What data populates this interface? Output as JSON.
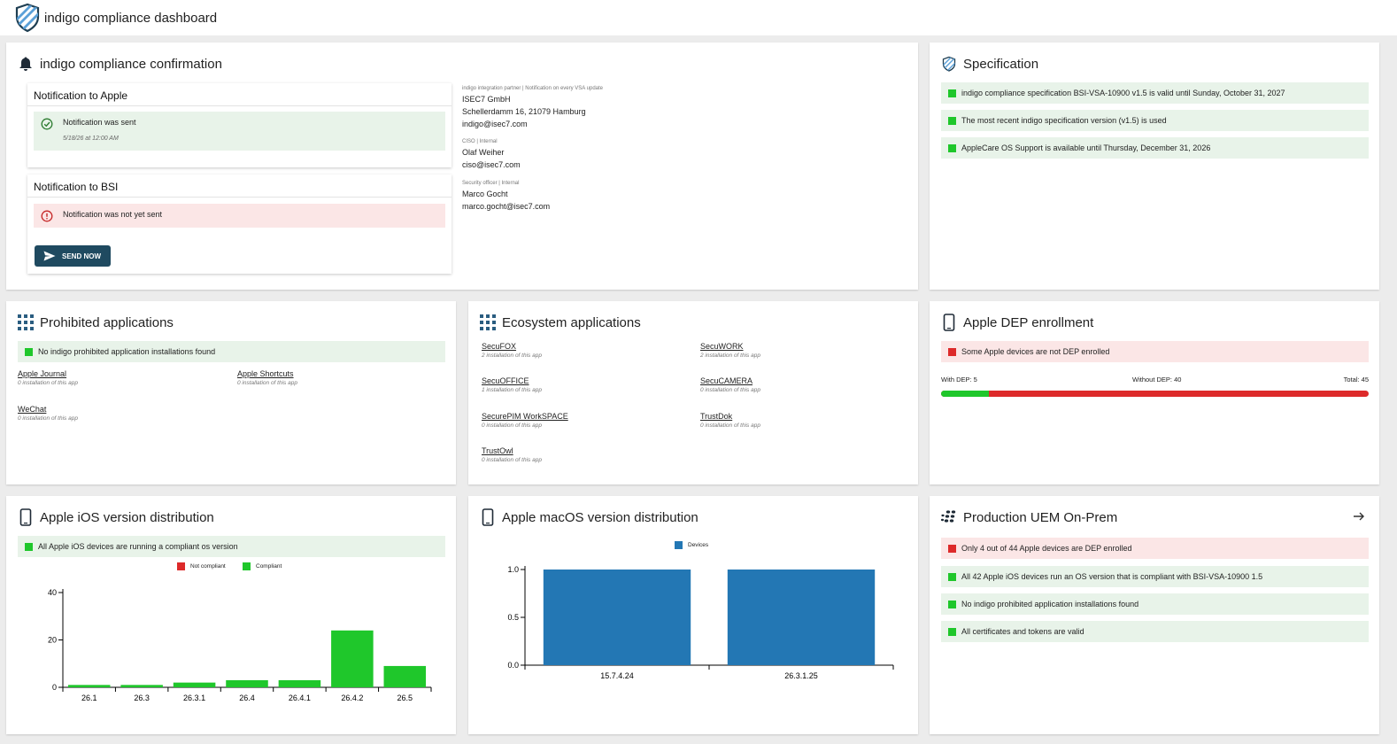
{
  "app": {
    "title": "indigo compliance dashboard"
  },
  "colors": {
    "compliant": "#1fc72b",
    "not_compliant": "#dd2a2a",
    "devices": "#2377b4",
    "button": "#1f4a60"
  },
  "confirmation": {
    "title": "indigo compliance confirmation",
    "apple": {
      "title": "Notification to Apple",
      "status": "Notification was sent",
      "date": "5/18/26 at 12:00 AM"
    },
    "bsi": {
      "title": "Notification to BSI",
      "status": "Notification was not yet sent",
      "button": "SEND NOW"
    },
    "contacts": [
      {
        "role": "indigo integration partner | Notification on every VSA update",
        "lines": [
          "ISEC7 GmbH",
          "Schellerdamm 16, 21079 Hamburg",
          "indigo@isec7.com"
        ]
      },
      {
        "role": "CISO | Internal",
        "lines": [
          "Olaf Weiher",
          "ciso@isec7.com"
        ]
      },
      {
        "role": "Security officer | Internal",
        "lines": [
          "Marco Gocht",
          "marco.gocht@isec7.com"
        ]
      }
    ]
  },
  "specification": {
    "title": "Specification",
    "items": [
      "indigo compliance specification BSI-VSA-10900 v1.5 is valid until Sunday, October 31, 2027",
      "The most recent indigo specification version (v1.5) is used",
      "AppleCare OS Support is available until Thursday, December 31, 2026"
    ]
  },
  "prohibited": {
    "title": "Prohibited applications",
    "status": "No indigo prohibited application installations found",
    "apps": [
      {
        "name": "Apple Journal",
        "count": "0 installation of this app"
      },
      {
        "name": "Apple Shortcuts",
        "count": "0 installation of this app"
      },
      {
        "name": "WeChat",
        "count": "0 installation of this app"
      }
    ]
  },
  "ecosystem": {
    "title": "Ecosystem applications",
    "apps": [
      {
        "name": "SecuFOX",
        "count": "2 installation of this app"
      },
      {
        "name": "SecuWORK",
        "count": "2 installation of this app"
      },
      {
        "name": "SecuOFFICE",
        "count": "1 installation of this app"
      },
      {
        "name": "SecuCAMERA",
        "count": "0 installation of this app"
      },
      {
        "name": "SecurePIM WorkSPACE",
        "count": "0 installation of this app"
      },
      {
        "name": "TrustDok",
        "count": "0 installation of this app"
      },
      {
        "name": "TrustOwl",
        "count": "0 installation of this app"
      }
    ]
  },
  "dep": {
    "title": "Apple DEP enrollment",
    "status": "Some Apple devices are not DEP enrolled",
    "with_label": "With DEP: 5",
    "without_label": "Without DEP: 40",
    "total_label": "Total: 45",
    "with": 5,
    "total": 45
  },
  "ios": {
    "title": "Apple iOS version distribution",
    "status": "All Apple iOS devices are running a compliant os version",
    "chart_data": {
      "type": "bar",
      "categories": [
        "26.1",
        "26.3",
        "26.3.1",
        "26.4",
        "26.4.1",
        "26.4.2",
        "26.5"
      ],
      "series": [
        {
          "name": "Not compliant",
          "values": [
            0,
            0,
            0,
            0,
            0,
            0,
            0
          ]
        },
        {
          "name": "Compliant",
          "values": [
            1,
            1,
            2,
            3,
            3,
            24,
            9
          ]
        }
      ],
      "yticks": [
        0,
        20,
        40
      ],
      "ylim": [
        0,
        40
      ],
      "legend": "top-center"
    }
  },
  "macos": {
    "title": "Apple macOS version distribution",
    "chart_data": {
      "type": "bar",
      "categories": [
        "15.7.4.24",
        "26.3.1.25"
      ],
      "series": [
        {
          "name": "Devices",
          "values": [
            1,
            1
          ]
        }
      ],
      "yticks": [
        "0.0",
        "0.5",
        "1.0"
      ],
      "ylim": [
        0,
        1
      ],
      "legend": "top-center"
    }
  },
  "uem": {
    "title": "Production UEM On-Prem",
    "items": [
      {
        "text": "Only 4 out of 44 Apple devices are DEP enrolled",
        "ok": false
      },
      {
        "text": "All 42 Apple iOS devices run an OS version that is compliant with BSI-VSA-10900 1.5",
        "ok": true
      },
      {
        "text": "No indigo prohibited application installations found",
        "ok": true
      },
      {
        "text": "All certificates and tokens are valid",
        "ok": true
      }
    ]
  }
}
